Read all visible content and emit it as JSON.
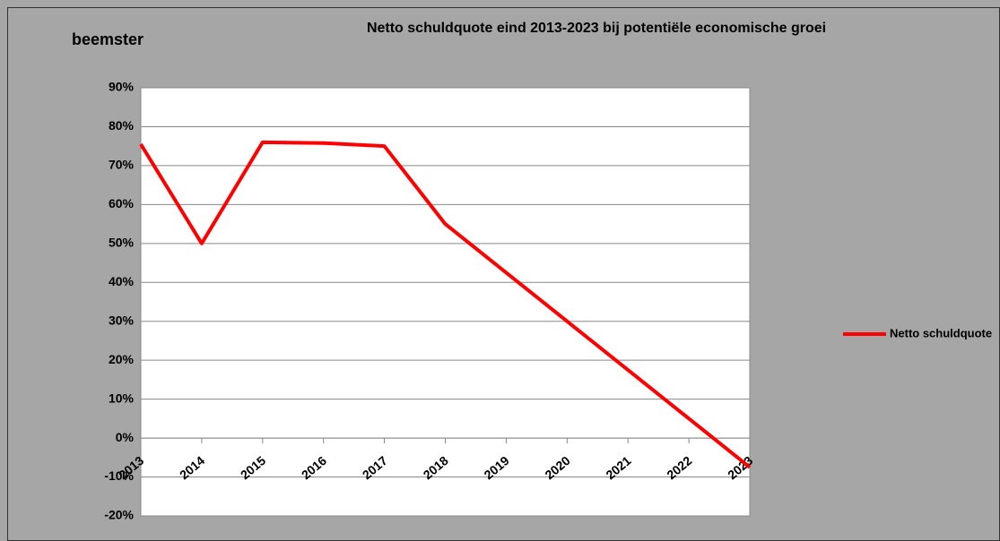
{
  "chart_data": {
    "type": "line",
    "title": "Netto schuldquote eind 2013-2023 bij potentiële economische groei",
    "subtitle": "beemster",
    "categories": [
      "2013",
      "2014",
      "2015",
      "2016",
      "2017",
      "2018",
      "2019",
      "2020",
      "2021",
      "2022",
      "2023"
    ],
    "series": [
      {
        "name": "Netto schuldquote",
        "color": "#ff0000",
        "values": [
          75.5,
          50,
          76,
          75.8,
          75,
          55,
          42.5,
          30,
          17.5,
          5,
          -7.5
        ]
      }
    ],
    "ylim": [
      -20,
      90
    ],
    "yticks": [
      {
        "value": -20,
        "label": "-20%"
      },
      {
        "value": -10,
        "label": "-10%"
      },
      {
        "value": 0,
        "label": "0%"
      },
      {
        "value": 10,
        "label": "10%"
      },
      {
        "value": 20,
        "label": "20%"
      },
      {
        "value": 30,
        "label": "30%"
      },
      {
        "value": 40,
        "label": "40%"
      },
      {
        "value": 50,
        "label": "50%"
      },
      {
        "value": 60,
        "label": "60%"
      },
      {
        "value": 70,
        "label": "70%"
      },
      {
        "value": 80,
        "label": "80%"
      },
      {
        "value": 90,
        "label": "90%"
      }
    ],
    "grid": true,
    "legend": "right"
  }
}
